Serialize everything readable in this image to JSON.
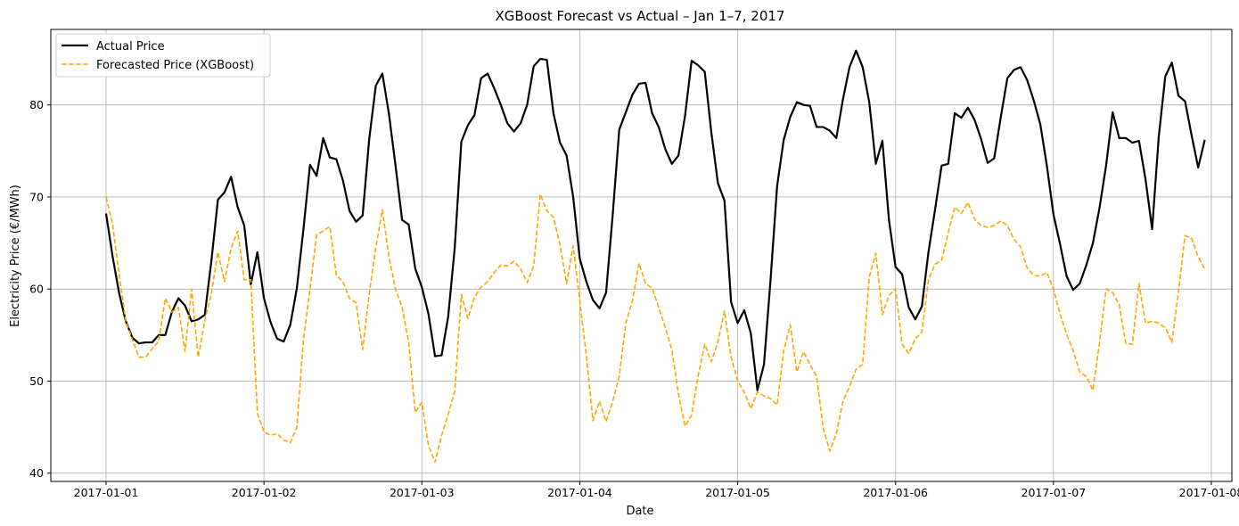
{
  "chart_data": {
    "type": "line",
    "title": "XGBoost Forecast vs Actual – Jan 1–7, 2017",
    "xlabel": "Date",
    "ylabel": "Electricity Price (€/MWh)",
    "x_tick_labels": [
      "2017-01-01",
      "2017-01-02",
      "2017-01-03",
      "2017-01-04",
      "2017-01-05",
      "2017-01-06",
      "2017-01-07",
      "2017-01-08"
    ],
    "y_ticks": [
      40,
      50,
      60,
      70,
      80
    ],
    "ylim": [
      39.1,
      88.2
    ],
    "xlim_days": [
      -0.35,
      7.13
    ],
    "grid": true,
    "legend_location": "top-left",
    "x_hours_start": "2017-01-01 00:00",
    "x_step_hours": 1,
    "series": [
      {
        "name": "Actual Price",
        "color": "#000000",
        "style": "solid",
        "values": [
          68.2,
          63.5,
          59.5,
          56.5,
          54.7,
          54.1,
          54.2,
          54.2,
          55.0,
          55.0,
          57.5,
          59.0,
          58.2,
          56.5,
          56.7,
          57.2,
          63.0,
          69.7,
          70.5,
          72.2,
          68.9,
          66.9,
          60.5,
          64.0,
          59.0,
          56.4,
          54.6,
          54.3,
          56.1,
          60.1,
          66.5,
          73.5,
          72.3,
          76.4,
          74.3,
          74.1,
          71.8,
          68.5,
          67.3,
          68.0,
          76.3,
          82.1,
          83.4,
          79.0,
          73.4,
          67.5,
          67.0,
          62.2,
          60.2,
          57.3,
          52.7,
          52.8,
          57.0,
          64.5,
          76.0,
          77.8,
          78.9,
          82.9,
          83.4,
          81.8,
          80.0,
          78.0,
          77.1,
          78.0,
          80.0,
          84.2,
          85.0,
          84.9,
          79.1,
          75.9,
          74.5,
          70.0,
          63.3,
          60.8,
          58.8,
          57.9,
          59.6,
          68.0,
          77.3,
          79.2,
          81.1,
          82.3,
          82.4,
          79.1,
          77.6,
          75.2,
          73.6,
          74.5,
          78.8,
          84.8,
          84.3,
          83.6,
          77.0,
          71.5,
          69.6,
          58.6,
          56.3,
          57.7,
          55.2,
          49.0,
          51.8,
          61.0,
          71.2,
          76.2,
          78.7,
          80.3,
          80.0,
          79.9,
          77.6,
          77.6,
          77.2,
          76.4,
          80.6,
          84.1,
          85.9,
          84.1,
          80.3,
          73.6,
          76.1,
          67.5,
          62.4,
          61.6,
          58.0,
          56.7,
          58.1,
          64.0,
          68.6,
          73.4,
          73.6,
          79.1,
          78.6,
          79.7,
          78.4,
          76.3,
          73.7,
          74.2,
          78.7,
          82.9,
          83.8,
          84.1,
          82.7,
          80.5,
          77.9,
          73.4,
          68.1,
          64.9,
          61.4,
          59.9,
          60.6,
          62.6,
          65.0,
          68.8,
          73.4,
          79.2,
          76.4,
          76.4,
          75.9,
          76.1,
          71.9,
          66.5,
          76.5,
          83.1,
          84.6,
          81.0,
          80.4,
          76.7,
          73.2,
          76.2
        ]
      },
      {
        "name": "Forecasted Price (XGBoost)",
        "color": "#ffa500",
        "style": "dashed",
        "values": [
          70.0,
          67.0,
          61.5,
          56.5,
          54.5,
          52.6,
          52.6,
          53.5,
          54.3,
          59.0,
          57.5,
          58.0,
          53.2,
          60.0,
          52.6,
          56.5,
          59.5,
          64.0,
          60.8,
          64.4,
          66.3,
          61.0,
          61.0,
          46.5,
          44.5,
          44.1,
          44.3,
          43.6,
          43.3,
          45.0,
          54.5,
          60.0,
          65.9,
          66.3,
          66.8,
          61.5,
          60.8,
          59.0,
          58.5,
          53.4,
          59.5,
          64.5,
          68.6,
          63.5,
          60.0,
          58.0,
          54.2,
          46.6,
          47.7,
          43.0,
          41.2,
          44.1,
          46.4,
          48.9,
          59.4,
          56.8,
          59.1,
          60.2,
          60.8,
          61.8,
          62.6,
          62.5,
          63.0,
          62.2,
          60.7,
          62.5,
          70.3,
          68.5,
          67.8,
          64.8,
          60.6,
          64.7,
          58.7,
          52.8,
          45.7,
          47.8,
          45.6,
          47.8,
          50.5,
          56.3,
          58.7,
          62.8,
          60.6,
          60.1,
          58.0,
          55.8,
          53.4,
          48.6,
          45.1,
          46.3,
          50.6,
          54.0,
          52.1,
          54.3,
          57.6,
          52.6,
          50.0,
          48.8,
          47.0,
          48.8,
          48.4,
          48.1,
          47.4,
          53.3,
          56.1,
          51.0,
          53.2,
          51.8,
          50.5,
          44.9,
          42.4,
          44.3,
          47.8,
          49.4,
          51.3,
          51.8,
          61.3,
          63.9,
          57.2,
          59.3,
          60.0,
          54.0,
          53.0,
          54.6,
          55.3,
          61.0,
          62.7,
          63.1,
          66.1,
          68.9,
          68.2,
          69.4,
          67.6,
          66.9,
          66.7,
          66.9,
          67.4,
          66.9,
          65.4,
          64.6,
          62.3,
          61.5,
          61.4,
          61.8,
          60.0,
          57.3,
          55.1,
          53.3,
          51.0,
          50.5,
          49.0,
          54.2,
          60.0,
          59.6,
          58.3,
          54.1,
          54.0,
          60.6,
          56.3,
          56.5,
          56.3,
          55.8,
          54.2,
          59.7,
          65.8,
          65.5,
          63.5,
          62.2
        ]
      }
    ]
  }
}
